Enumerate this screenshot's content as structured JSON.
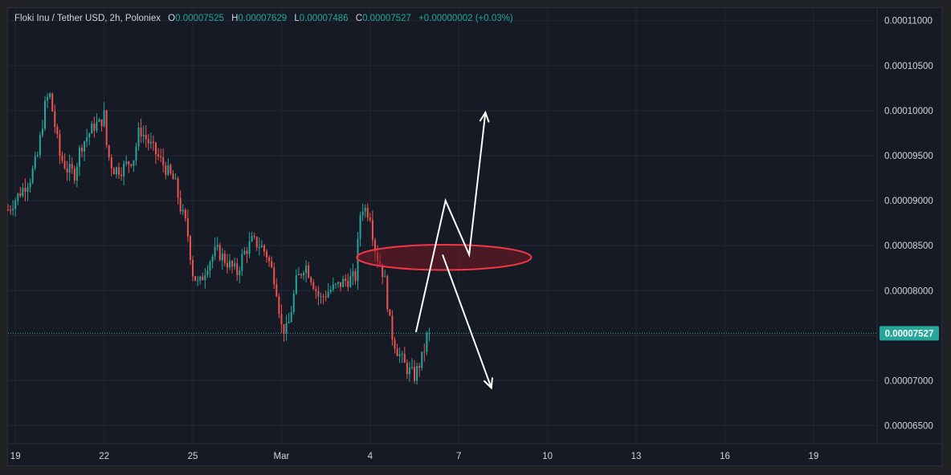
{
  "legend": {
    "symbol": "Floki Inu / Tether USD, 2h, Poloniex",
    "o_label": "O",
    "o_value": "0.00007525",
    "h_label": "H",
    "h_value": "0.00007629",
    "l_label": "L",
    "l_value": "0.00007486",
    "c_label": "C",
    "c_value": "0.00007527",
    "change": "+0.00000002 (+0.03%)"
  },
  "chart_data": {
    "type": "candlestick",
    "y_ticks": [
      "0.00011000",
      "0.00010500",
      "0.00010000",
      "0.00009500",
      "0.00009000",
      "0.00008500",
      "0.00008000",
      "0.00007500",
      "0.00007000",
      "0.00006500"
    ],
    "y_tick_values": [
      0.00011,
      0.000105,
      0.0001,
      9.5e-05,
      9e-05,
      8.5e-05,
      8e-05,
      7.5e-05,
      7e-05,
      6.5e-05
    ],
    "ylim": [
      6.3e-05,
      0.0001114
    ],
    "x_ticks": [
      "19",
      "22",
      "25",
      "Mar",
      "4",
      "7",
      "10",
      "13",
      "16",
      "19"
    ],
    "x_tick_days": [
      0,
      3,
      6,
      9,
      12,
      15,
      18,
      21,
      24,
      27
    ],
    "xlim_days": [
      -0.25,
      29.15
    ],
    "last_price": "0.00007527",
    "last_price_value": 7.527e-05,
    "grid": true,
    "colors": {
      "up": "#26a69a",
      "down": "#ef5350",
      "background": "#161a25",
      "grid": "#232733"
    },
    "price_path_days": [
      -0.25,
      0.5,
      0.75,
      1.0,
      1.15,
      1.3,
      1.5,
      1.75,
      2.0,
      2.2,
      2.5,
      2.7,
      2.85,
      3.0,
      3.1,
      3.3,
      3.6,
      4.0,
      4.2,
      4.5,
      4.8,
      5.1,
      5.4,
      5.6,
      5.8,
      6.0,
      6.2,
      6.5,
      6.8,
      7.2,
      7.5,
      7.7,
      8.0,
      8.3,
      8.5,
      8.8,
      9.0,
      9.2,
      9.5,
      9.8,
      10.0,
      10.3,
      10.6,
      10.9,
      11.1,
      11.5,
      11.65,
      11.7,
      12.0,
      12.1,
      12.2,
      12.35,
      12.5,
      12.7,
      12.9,
      13.2,
      13.5,
      13.75,
      14.0
    ],
    "price_path_values": [
      8.9e-05,
      9.25e-05,
      9.5e-05,
      0.0001005,
      0.000102,
      9.9e-05,
      9.5e-05,
      9.35e-05,
      9.3e-05,
      9.6e-05,
      9.75e-05,
      9.85e-05,
      9.85e-05,
      9.95e-05,
      9.55e-05,
      9.35e-05,
      9.35e-05,
      9.48e-05,
      9.8e-05,
      9.65e-05,
      9.5e-05,
      9.35e-05,
      9.2e-05,
      8.9e-05,
      8.7e-05,
      8.2e-05,
      8.05e-05,
      8.3e-05,
      8.45e-05,
      8.3e-05,
      8.2e-05,
      8.4e-05,
      8.55e-05,
      8.5e-05,
      8.4e-05,
      8.1e-05,
      7.6e-05,
      7.55e-05,
      8.1e-05,
      8.3e-05,
      8.15e-05,
      7.9e-05,
      8e-05,
      8.05e-05,
      8.1e-05,
      8.15e-05,
      8.8e-05,
      8.95e-05,
      8.85e-05,
      8.6e-05,
      8.4e-05,
      8.3e-05,
      8.1e-05,
      7.55e-05,
      7.35e-05,
      7.15e-05,
      7.05e-05,
      7.25e-05,
      7.55e-05
    ],
    "drawings": [
      {
        "type": "ellipse",
        "center_day": 14.5,
        "center_value": 8.37e-05,
        "rx_days": 2.95,
        "ry_value": 1.4e-06,
        "stroke": "#f23645",
        "fill": "rgba(120,25,35,0.55)"
      },
      {
        "type": "path",
        "points": [
          [
            13.55,
            7.54e-05
          ],
          [
            14.55,
            9e-05
          ],
          [
            15.35,
            8.4e-05
          ],
          [
            15.9,
            9.98e-05
          ]
        ],
        "arrow": true,
        "stroke": "#ffffff"
      },
      {
        "type": "path",
        "points": [
          [
            14.45,
            8.4e-05
          ],
          [
            16.1,
            6.92e-05
          ]
        ],
        "arrow": true,
        "stroke": "#ffffff"
      }
    ]
  }
}
